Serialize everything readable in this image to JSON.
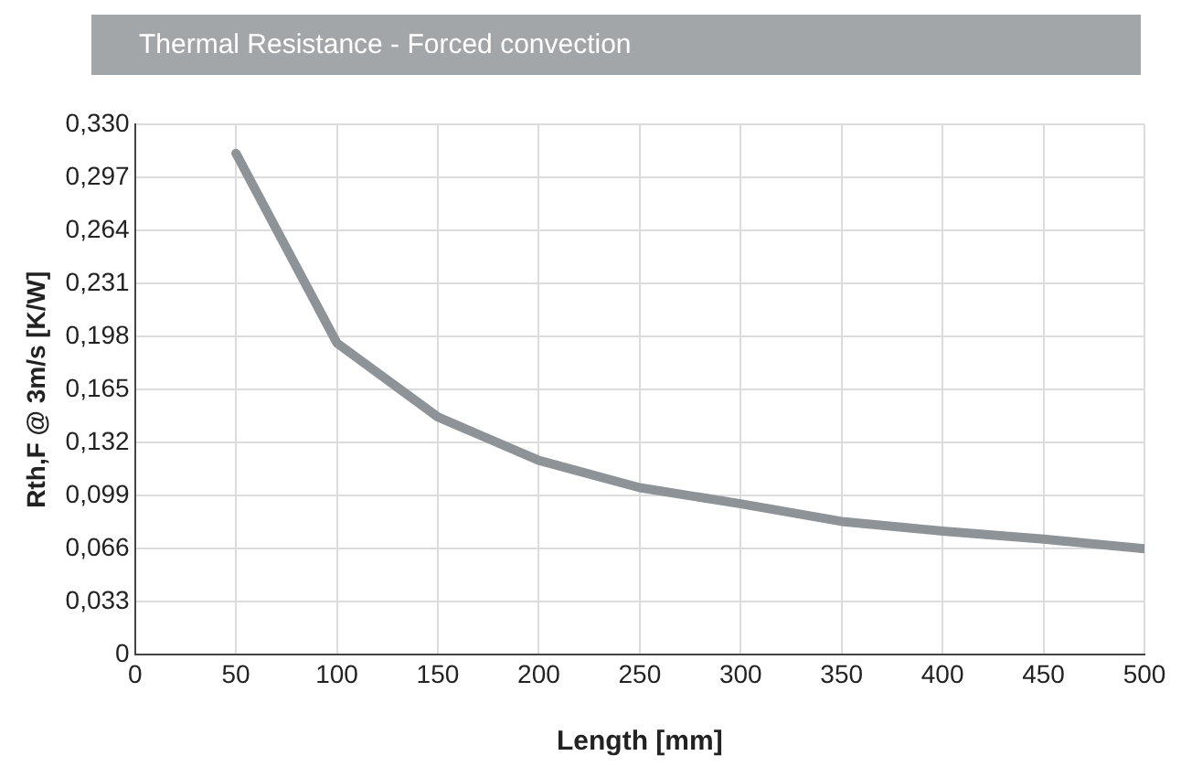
{
  "chart_data": {
    "type": "line",
    "title": "Thermal Resistance - Forced convection",
    "xlabel": "Length [mm]",
    "ylabel": "Rth,F @ 3m/s [K/W]",
    "x": [
      50,
      100,
      150,
      200,
      250,
      300,
      350,
      400,
      450,
      500
    ],
    "series": [
      {
        "color": "#8e9398",
        "values": [
          0.312,
          0.194,
          0.148,
          0.121,
          0.104,
          0.094,
          0.083,
          0.077,
          0.072,
          0.066
        ]
      }
    ],
    "xlim": [
      0,
      500
    ],
    "xticks": [
      0,
      50,
      100,
      150,
      200,
      250,
      300,
      350,
      400,
      450,
      500
    ],
    "ylim": [
      0,
      0.33
    ],
    "yticks": [
      {
        "value": 0,
        "label": "0"
      },
      {
        "value": 0.033,
        "label": "0,033"
      },
      {
        "value": 0.066,
        "label": "0,066"
      },
      {
        "value": 0.099,
        "label": "0,099"
      },
      {
        "value": 0.132,
        "label": "0,132"
      },
      {
        "value": 0.165,
        "label": "0,165"
      },
      {
        "value": 0.198,
        "label": "0,198"
      },
      {
        "value": 0.231,
        "label": "0,231"
      },
      {
        "value": 0.264,
        "label": "0,264"
      },
      {
        "value": 0.297,
        "label": "0,297"
      },
      {
        "value": 0.33,
        "label": "0,330"
      }
    ],
    "grid": true,
    "legend": false,
    "marker": "none",
    "line_style": "solid"
  }
}
